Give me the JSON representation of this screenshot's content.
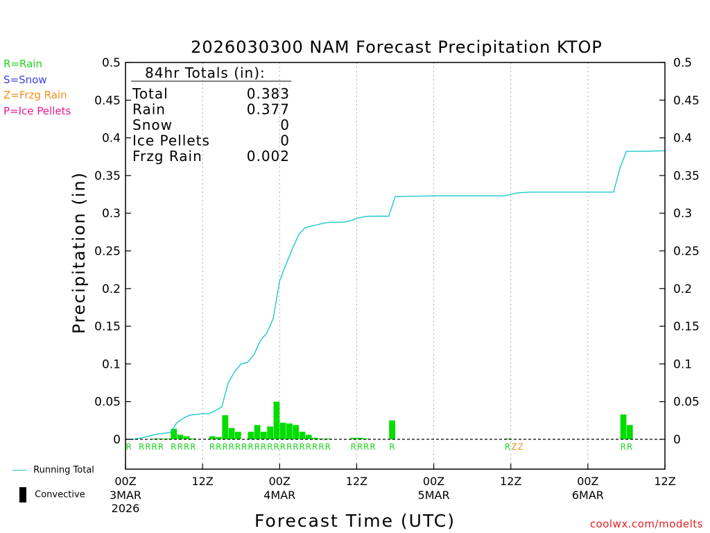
{
  "chart_data": {
    "type": "bar+line",
    "title": "2026030300 NAM Forecast Precipitation KTOP",
    "xlabel": "Forecast Time (UTC)",
    "ylabel": "Precipitation (in)",
    "ylim": [
      0,
      0.5
    ],
    "xlim_hours": [
      0,
      84
    ],
    "yticks": [
      "0",
      "0.05",
      "0.1",
      "0.15",
      "0.2",
      "0.25",
      "0.3",
      "0.35",
      "0.4",
      "0.45",
      "0.5"
    ],
    "xticks": [
      {
        "hour": 0,
        "time": "00Z",
        "date": "3MAR",
        "year": "2026"
      },
      {
        "hour": 12,
        "time": "12Z",
        "date": "",
        "year": ""
      },
      {
        "hour": 24,
        "time": "00Z",
        "date": "4MAR",
        "year": ""
      },
      {
        "hour": 36,
        "time": "12Z",
        "date": "",
        "year": ""
      },
      {
        "hour": 48,
        "time": "00Z",
        "date": "5MAR",
        "year": ""
      },
      {
        "hour": 60,
        "time": "12Z",
        "date": "",
        "year": ""
      },
      {
        "hour": 72,
        "time": "00Z",
        "date": "6MAR",
        "year": ""
      },
      {
        "hour": 84,
        "time": "12Z",
        "date": "",
        "year": ""
      }
    ],
    "totals": {
      "heading": "84hr Totals (in):",
      "rows": [
        {
          "label": "Total",
          "value": "0.383"
        },
        {
          "label": "Rain",
          "value": "0.377"
        },
        {
          "label": "Snow",
          "value": "0"
        },
        {
          "label": "Ice Pellets",
          "value": "0"
        },
        {
          "label": "Frzg Rain",
          "value": "0.002"
        }
      ]
    },
    "type_legend": [
      {
        "text": "R=Rain",
        "color": "#1fd41f"
      },
      {
        "text": "S=Snow",
        "color": "#3a44e6"
      },
      {
        "text": "Z=Frzg Rain",
        "color": "#f0901e"
      },
      {
        "text": "P=Ice Pellets",
        "color": "#e61a8c"
      }
    ],
    "series_legend": {
      "running_total": "Running Total",
      "convective": "Convective"
    },
    "bars": [
      {
        "hour": 4,
        "value": 0.001
      },
      {
        "hour": 5,
        "value": 0.001
      },
      {
        "hour": 6,
        "value": 0.001
      },
      {
        "hour": 7,
        "value": 0.014
      },
      {
        "hour": 8,
        "value": 0.006
      },
      {
        "hour": 9,
        "value": 0.004
      },
      {
        "hour": 10,
        "value": 0.001
      },
      {
        "hour": 13,
        "value": 0.004
      },
      {
        "hour": 14,
        "value": 0.003
      },
      {
        "hour": 15,
        "value": 0.032
      },
      {
        "hour": 16,
        "value": 0.015
      },
      {
        "hour": 17,
        "value": 0.01
      },
      {
        "hour": 19,
        "value": 0.01
      },
      {
        "hour": 20,
        "value": 0.019
      },
      {
        "hour": 21,
        "value": 0.01
      },
      {
        "hour": 22,
        "value": 0.017
      },
      {
        "hour": 23,
        "value": 0.05
      },
      {
        "hour": 24,
        "value": 0.022
      },
      {
        "hour": 25,
        "value": 0.021
      },
      {
        "hour": 26,
        "value": 0.019
      },
      {
        "hour": 27,
        "value": 0.01
      },
      {
        "hour": 28,
        "value": 0.006
      },
      {
        "hour": 29,
        "value": 0.002
      },
      {
        "hour": 30,
        "value": 0.001
      },
      {
        "hour": 31,
        "value": 0.001
      },
      {
        "hour": 35,
        "value": 0.002
      },
      {
        "hour": 36,
        "value": 0.002
      },
      {
        "hour": 37,
        "value": 0.001
      },
      {
        "hour": 41,
        "value": 0.025
      },
      {
        "hour": 59,
        "value": 0.001
      },
      {
        "hour": 77,
        "value": 0.033
      },
      {
        "hour": 78,
        "value": 0.019
      }
    ],
    "running_total": {
      "x": [
        0,
        1,
        2,
        3,
        4,
        5,
        6,
        7,
        8,
        9,
        10,
        11,
        12,
        13,
        14,
        15,
        16,
        17,
        18,
        19,
        20,
        21,
        22,
        23,
        24,
        25,
        26,
        27,
        28,
        29,
        30,
        31,
        32,
        33,
        34,
        35,
        36,
        37,
        38,
        39,
        40,
        41,
        42,
        48,
        54,
        57,
        59,
        60,
        61,
        63,
        66,
        72,
        76,
        77,
        78,
        81,
        84
      ],
      "y": [
        0,
        0,
        0.001,
        0.003,
        0.005,
        0.007,
        0.008,
        0.009,
        0.022,
        0.028,
        0.032,
        0.033,
        0.034,
        0.034,
        0.038,
        0.043,
        0.075,
        0.09,
        0.1,
        0.102,
        0.112,
        0.131,
        0.141,
        0.16,
        0.21,
        0.232,
        0.253,
        0.272,
        0.281,
        0.283,
        0.285,
        0.287,
        0.288,
        0.288,
        0.288,
        0.29,
        0.293,
        0.295,
        0.296,
        0.296,
        0.296,
        0.296,
        0.322,
        0.323,
        0.323,
        0.323,
        0.323,
        0.325,
        0.327,
        0.328,
        0.328,
        0.328,
        0.328,
        0.36,
        0.382,
        0.382,
        0.383
      ]
    },
    "precip_labels": [
      {
        "hour": 0,
        "text": "R",
        "color": "#1fd41f"
      },
      {
        "hour": 2,
        "text": "R",
        "color": "#1fd41f"
      },
      {
        "hour": 3,
        "text": "R",
        "color": "#1fd41f"
      },
      {
        "hour": 4,
        "text": "R",
        "color": "#1fd41f"
      },
      {
        "hour": 5,
        "text": "R",
        "color": "#1fd41f"
      },
      {
        "hour": 7,
        "text": "R",
        "color": "#1fd41f"
      },
      {
        "hour": 8,
        "text": "R",
        "color": "#1fd41f"
      },
      {
        "hour": 9,
        "text": "R",
        "color": "#1fd41f"
      },
      {
        "hour": 10,
        "text": "R",
        "color": "#1fd41f"
      },
      {
        "hour": 13,
        "text": "R",
        "color": "#1fd41f"
      },
      {
        "hour": 14,
        "text": "R",
        "color": "#1fd41f"
      },
      {
        "hour": 15,
        "text": "R",
        "color": "#1fd41f"
      },
      {
        "hour": 16,
        "text": "R",
        "color": "#1fd41f"
      },
      {
        "hour": 17,
        "text": "R",
        "color": "#1fd41f"
      },
      {
        "hour": 18,
        "text": "R",
        "color": "#1fd41f"
      },
      {
        "hour": 19,
        "text": "R",
        "color": "#1fd41f"
      },
      {
        "hour": 20,
        "text": "R",
        "color": "#1fd41f"
      },
      {
        "hour": 21,
        "text": "R",
        "color": "#1fd41f"
      },
      {
        "hour": 22,
        "text": "R",
        "color": "#1fd41f"
      },
      {
        "hour": 23,
        "text": "R",
        "color": "#1fd41f"
      },
      {
        "hour": 24,
        "text": "R",
        "color": "#1fd41f"
      },
      {
        "hour": 25,
        "text": "R",
        "color": "#1fd41f"
      },
      {
        "hour": 26,
        "text": "R",
        "color": "#1fd41f"
      },
      {
        "hour": 27,
        "text": "R",
        "color": "#1fd41f"
      },
      {
        "hour": 28,
        "text": "R",
        "color": "#1fd41f"
      },
      {
        "hour": 29,
        "text": "R",
        "color": "#1fd41f"
      },
      {
        "hour": 30,
        "text": "R",
        "color": "#1fd41f"
      },
      {
        "hour": 31,
        "text": "R",
        "color": "#1fd41f"
      },
      {
        "hour": 35,
        "text": "R",
        "color": "#1fd41f"
      },
      {
        "hour": 36,
        "text": "R",
        "color": "#1fd41f"
      },
      {
        "hour": 37,
        "text": "R",
        "color": "#1fd41f"
      },
      {
        "hour": 38,
        "text": "R",
        "color": "#1fd41f"
      },
      {
        "hour": 41,
        "text": "R",
        "color": "#1fd41f"
      },
      {
        "hour": 59,
        "text": "R",
        "color": "#1fd41f"
      },
      {
        "hour": 60,
        "text": "Z",
        "color": "#f0901e"
      },
      {
        "hour": 61,
        "text": "Z",
        "color": "#f0901e"
      },
      {
        "hour": 77,
        "text": "R",
        "color": "#1fd41f"
      },
      {
        "hour": 78,
        "text": "R",
        "color": "#1fd41f"
      }
    ],
    "colors": {
      "bar": "#00dd00",
      "line": "#1cc8cc",
      "axis": "#000000",
      "grid": "#aaaaaa"
    },
    "credit": "coolwx.com/modelts"
  }
}
